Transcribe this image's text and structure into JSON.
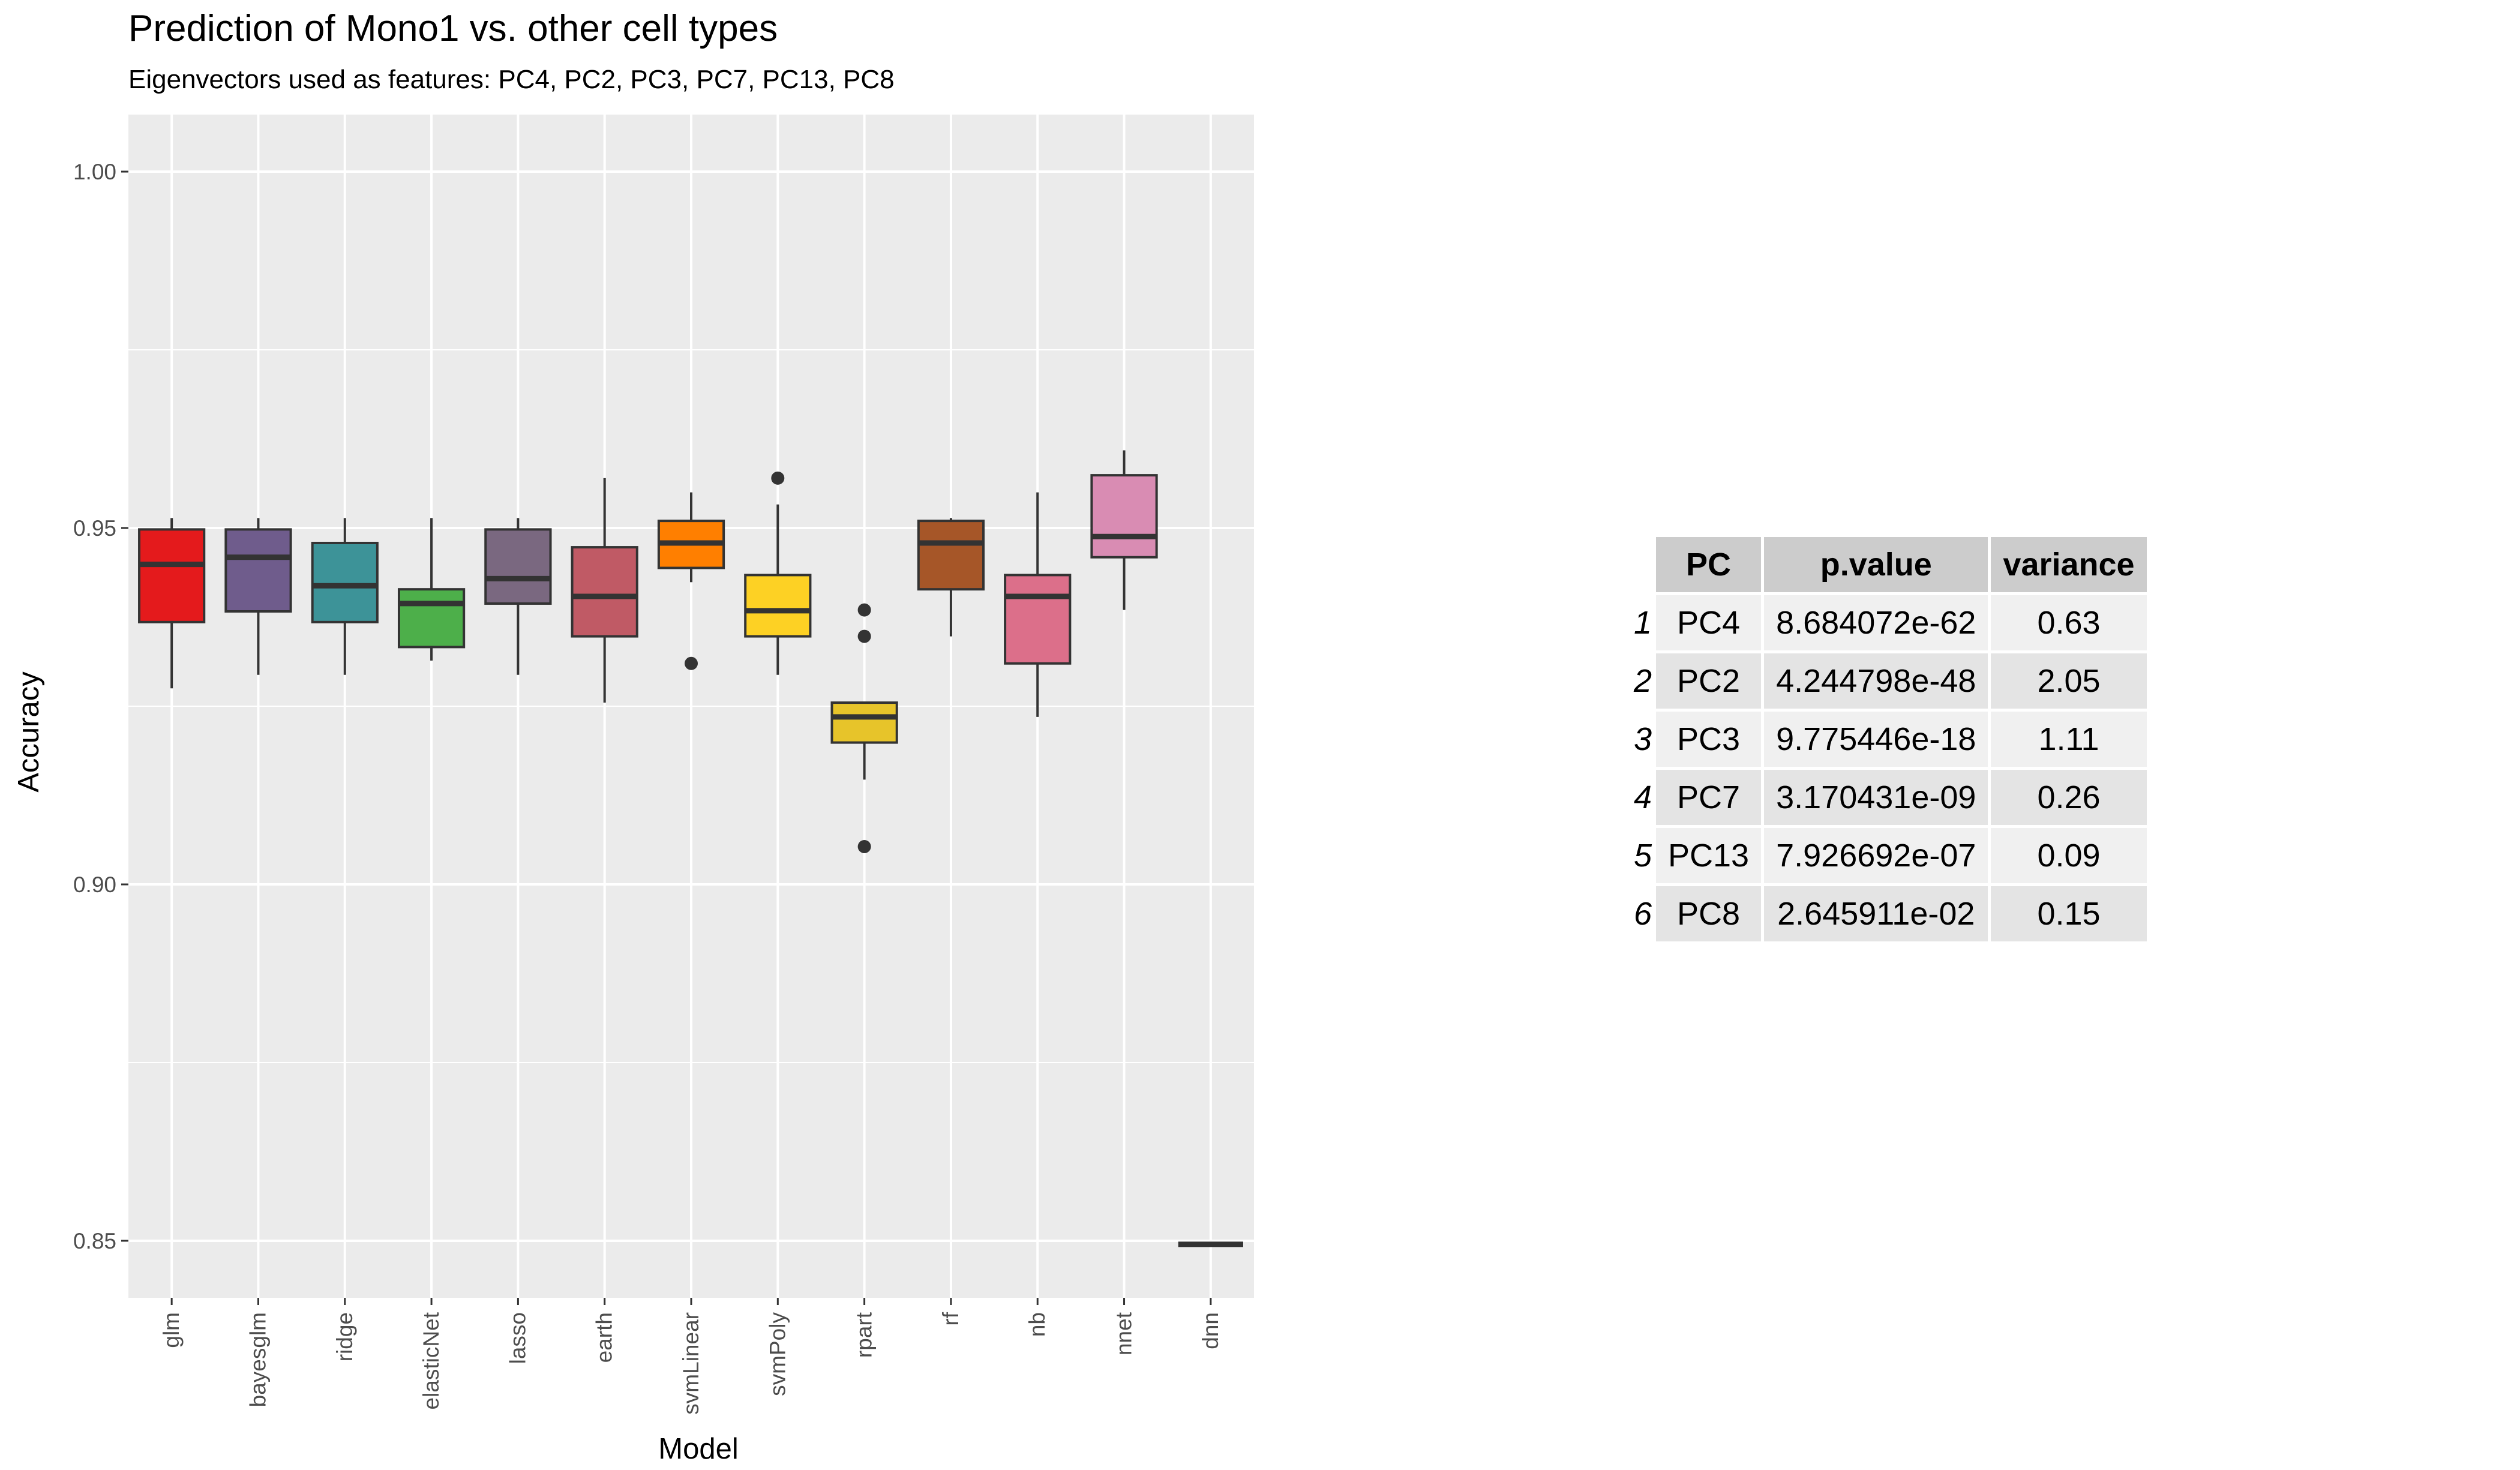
{
  "chart_data": {
    "type": "box",
    "title": "Prediction of Mono1 vs. other cell types",
    "subtitle": "Eigenvectors used as features: PC4, PC2, PC3, PC7, PC13, PC8",
    "xlabel": "Model",
    "ylabel": "Accuracy",
    "ylim": [
      0.842,
      1.008
    ],
    "yticks": [
      "0.85",
      "0.90",
      "0.95",
      "1.00"
    ],
    "ytick_values": [
      0.85,
      0.9,
      0.95,
      1.0
    ],
    "grid": true,
    "legend": "none",
    "boxes": [
      {
        "model": "glm",
        "color": "#e41a1c",
        "min": 0.9275,
        "q1": 0.9368,
        "median": 0.9449,
        "q3": 0.9498,
        "max": 0.9514,
        "outliers": []
      },
      {
        "model": "bayesglm",
        "color": "#6f5c8c",
        "min": 0.9294,
        "q1": 0.9383,
        "median": 0.9459,
        "q3": 0.9498,
        "max": 0.9514,
        "outliers": []
      },
      {
        "model": "ridge",
        "color": "#3d9398",
        "min": 0.9294,
        "q1": 0.9368,
        "median": 0.9419,
        "q3": 0.9479,
        "max": 0.9514,
        "outliers": []
      },
      {
        "model": "elasticNet",
        "color": "#4daf4a",
        "min": 0.9314,
        "q1": 0.9333,
        "median": 0.9394,
        "q3": 0.9414,
        "max": 0.9514,
        "outliers": []
      },
      {
        "model": "lasso",
        "color": "#7a6880",
        "min": 0.9294,
        "q1": 0.9394,
        "median": 0.9429,
        "q3": 0.9498,
        "max": 0.9514,
        "outliers": []
      },
      {
        "model": "earth",
        "color": "#c05a65",
        "min": 0.9255,
        "q1": 0.9348,
        "median": 0.9404,
        "q3": 0.9473,
        "max": 0.957,
        "outliers": []
      },
      {
        "model": "svmLinear",
        "color": "#ff7f00",
        "min": 0.9424,
        "q1": 0.9444,
        "median": 0.9479,
        "q3": 0.951,
        "max": 0.955,
        "outliers": [
          0.931
        ]
      },
      {
        "model": "svmPoly",
        "color": "#fdd124",
        "min": 0.9294,
        "q1": 0.9348,
        "median": 0.9384,
        "q3": 0.9434,
        "max": 0.9533,
        "outliers": [
          0.957
        ]
      },
      {
        "model": "rpart",
        "color": "#e7c42a",
        "min": 0.9147,
        "q1": 0.9199,
        "median": 0.9235,
        "q3": 0.9255,
        "max": 0.9255,
        "outliers": [
          0.9385,
          0.9348,
          0.9053
        ]
      },
      {
        "model": "rf",
        "color": "#a65628",
        "min": 0.9348,
        "q1": 0.9414,
        "median": 0.9479,
        "q3": 0.951,
        "max": 0.9514,
        "outliers": []
      },
      {
        "model": "nb",
        "color": "#dc6f8a",
        "min": 0.9235,
        "q1": 0.931,
        "median": 0.9404,
        "q3": 0.9434,
        "max": 0.955,
        "outliers": []
      },
      {
        "model": "nnet",
        "color": "#d98cb3",
        "min": 0.9385,
        "q1": 0.9459,
        "median": 0.9488,
        "q3": 0.9574,
        "max": 0.9609,
        "outliers": []
      },
      {
        "model": "dnn",
        "color": "#999999",
        "min": 0.8495,
        "q1": 0.8495,
        "median": 0.8495,
        "q3": 0.8495,
        "max": 0.8495,
        "outliers": []
      }
    ]
  },
  "table": {
    "headers": [
      "PC",
      "p.value",
      "variance"
    ],
    "rows": [
      {
        "n": "1",
        "pc": "PC4",
        "pvalue": "8.684072e-62",
        "variance": "0.63"
      },
      {
        "n": "2",
        "pc": "PC2",
        "pvalue": "4.244798e-48",
        "variance": "2.05"
      },
      {
        "n": "3",
        "pc": "PC3",
        "pvalue": "9.775446e-18",
        "variance": "1.11"
      },
      {
        "n": "4",
        "pc": "PC7",
        "pvalue": "3.170431e-09",
        "variance": "0.26"
      },
      {
        "n": "5",
        "pc": "PC13",
        "pvalue": "7.926692e-07",
        "variance": "0.09"
      },
      {
        "n": "6",
        "pc": "PC8",
        "pvalue": "2.645911e-02",
        "variance": "0.15"
      }
    ]
  }
}
